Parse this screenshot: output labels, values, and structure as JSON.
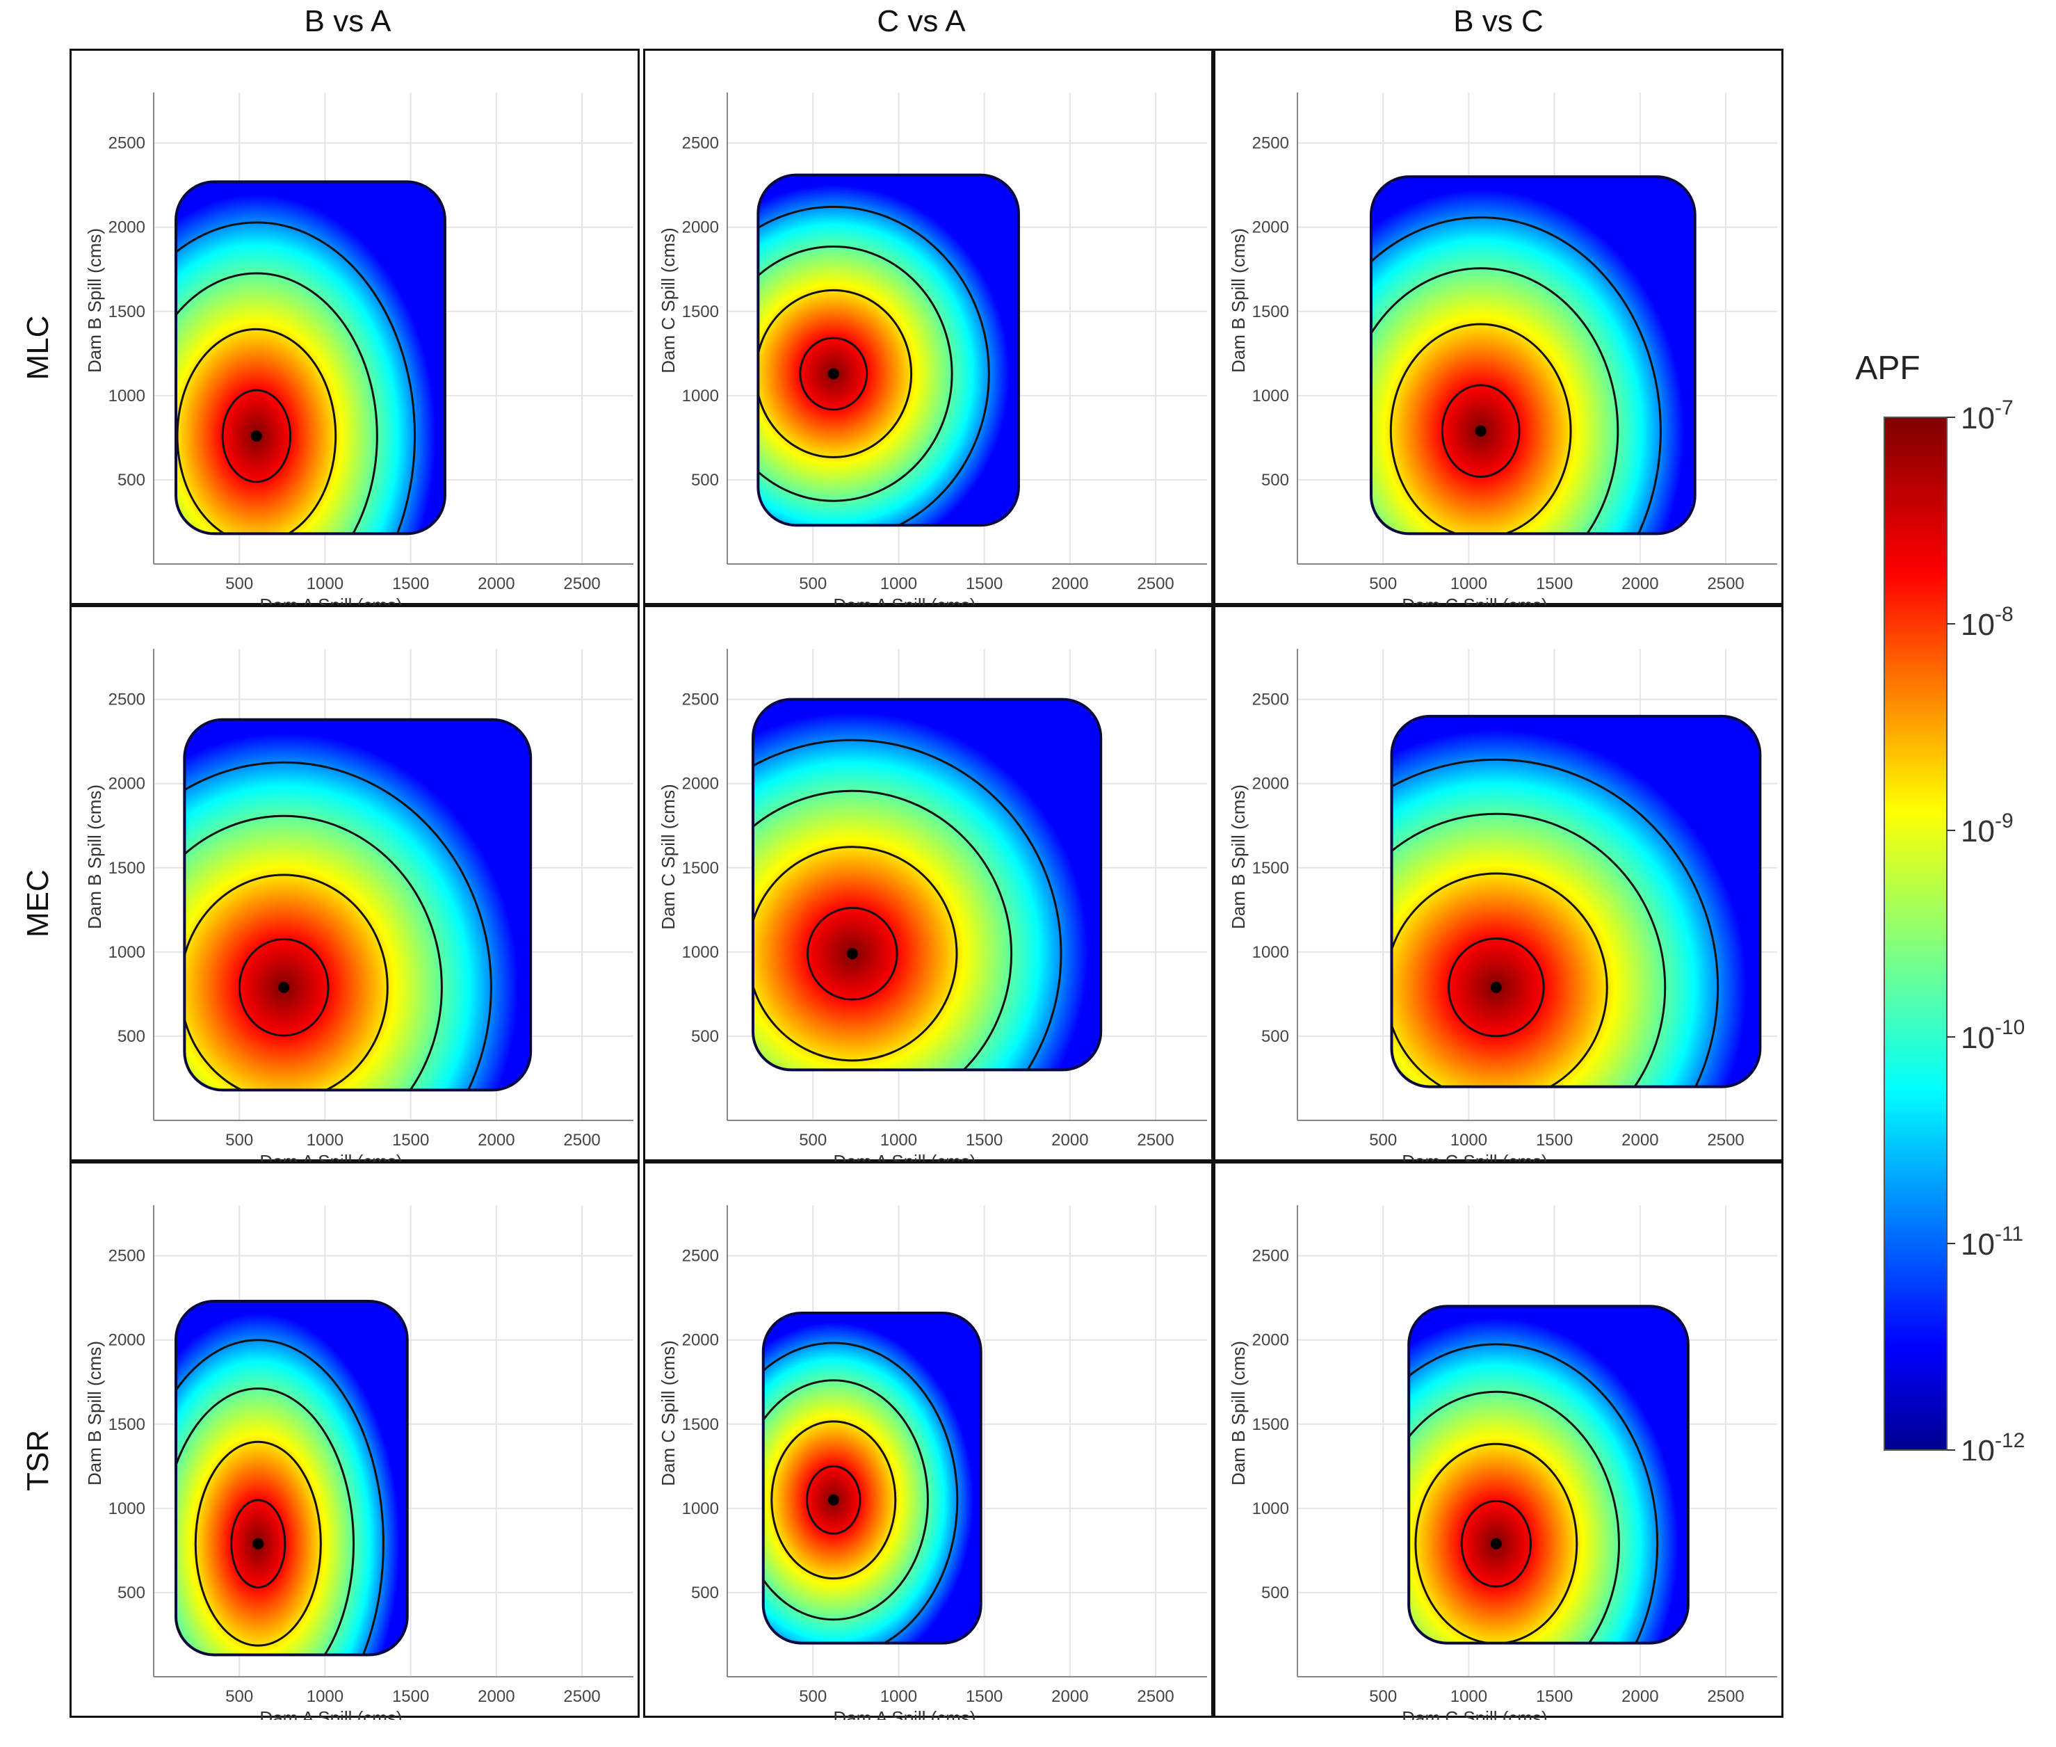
{
  "column_titles": [
    "B vs A",
    "C vs A",
    "B vs C"
  ],
  "row_titles": [
    "MLC",
    "MEC",
    "TSR"
  ],
  "colorbar": {
    "label": "APF",
    "ticks": [
      {
        "base": "10",
        "exp": "-7",
        "value": -7
      },
      {
        "base": "10",
        "exp": "-8",
        "value": -8
      },
      {
        "base": "10",
        "exp": "-9",
        "value": -9
      },
      {
        "base": "10",
        "exp": "-10",
        "value": -10
      },
      {
        "base": "10",
        "exp": "-11",
        "value": -11
      },
      {
        "base": "10",
        "exp": "-12",
        "value": -12
      }
    ],
    "range": [
      -12,
      -7
    ],
    "colors": [
      "#00008f",
      "#0000ff",
      "#00ffff",
      "#ffff00",
      "#ff0000",
      "#800000"
    ]
  },
  "chart_data": [
    {
      "type": "heatmap",
      "row": "MLC",
      "column": "B vs A",
      "xlabel": "Dam A Spill (cms)",
      "ylabel": "Dam B Spill (cms)",
      "xlim": [
        0,
        2800
      ],
      "ylim": [
        0,
        2800
      ],
      "xticks": [
        500,
        1000,
        1500,
        2000,
        2500
      ],
      "yticks": [
        500,
        1000,
        1500,
        2000,
        2500
      ],
      "peak": [
        600,
        760
      ],
      "extent_x": [
        130,
        1700
      ],
      "extent_y": [
        180,
        2270
      ],
      "spread": [
        380,
        620
      ]
    },
    {
      "type": "heatmap",
      "row": "MLC",
      "column": "C vs A",
      "xlabel": "Dam A Spill (cms)",
      "ylabel": "Dam C Spill (cms)",
      "xlim": [
        0,
        2800
      ],
      "ylim": [
        0,
        2800
      ],
      "xticks": [
        500,
        1000,
        1500,
        2000,
        2500
      ],
      "yticks": [
        500,
        1000,
        1500,
        2000,
        2500
      ],
      "peak": [
        620,
        1130
      ],
      "extent_x": [
        180,
        1700
      ],
      "extent_y": [
        230,
        2310
      ],
      "spread": [
        320,
        800
      ]
    },
    {
      "type": "heatmap",
      "row": "MLC",
      "column": "B vs C",
      "xlabel": "Dam C Spill (cms)",
      "ylabel": "Dam B Spill (cms)",
      "xlim": [
        0,
        2800
      ],
      "ylim": [
        0,
        2800
      ],
      "xticks": [
        500,
        1000,
        1500,
        2000,
        2500
      ],
      "yticks": [
        500,
        1000,
        1500,
        2000,
        2500
      ],
      "peak": [
        1070,
        790
      ],
      "extent_x": [
        430,
        2320
      ],
      "extent_y": [
        180,
        2300
      ],
      "spread": [
        620,
        620
      ]
    },
    {
      "type": "heatmap",
      "row": "MEC",
      "column": "B vs A",
      "xlabel": "Dam A Spill (cms)",
      "ylabel": "Dam B Spill (cms)",
      "xlim": [
        0,
        2800
      ],
      "ylim": [
        0,
        2800
      ],
      "xticks": [
        500,
        1000,
        1500,
        2000,
        2500
      ],
      "yticks": [
        500,
        1000,
        1500,
        2000,
        2500
      ],
      "peak": [
        760,
        790
      ],
      "extent_x": [
        180,
        2200
      ],
      "extent_y": [
        180,
        2380
      ],
      "spread": [
        540,
        540
      ]
    },
    {
      "type": "heatmap",
      "row": "MEC",
      "column": "C vs A",
      "xlabel": "Dam A Spill (cms)",
      "ylabel": "Dam C Spill (cms)",
      "xlim": [
        0,
        2800
      ],
      "ylim": [
        0,
        2800
      ],
      "xticks": [
        500,
        1000,
        1500,
        2000,
        2500
      ],
      "yticks": [
        500,
        1000,
        1500,
        2000,
        2500
      ],
      "peak": [
        730,
        990
      ],
      "extent_x": [
        150,
        2180
      ],
      "extent_y": [
        300,
        2500
      ],
      "spread": [
        520,
        700
      ]
    },
    {
      "type": "heatmap",
      "row": "MEC",
      "column": "B vs C",
      "xlabel": "Dam C Spill (cms)",
      "ylabel": "Dam B Spill (cms)",
      "xlim": [
        0,
        2800
      ],
      "ylim": [
        0,
        2800
      ],
      "xticks": [
        500,
        1000,
        1500,
        2000,
        2500
      ],
      "yticks": [
        500,
        1000,
        1500,
        2000,
        2500
      ],
      "peak": [
        1160,
        790
      ],
      "extent_x": [
        550,
        2700
      ],
      "extent_y": [
        200,
        2400
      ],
      "spread": [
        760,
        540
      ]
    },
    {
      "type": "heatmap",
      "row": "TSR",
      "column": "B vs A",
      "xlabel": "Dam A Spill (cms)",
      "ylabel": "Dam B Spill (cms)",
      "xlim": [
        0,
        2800
      ],
      "ylim": [
        0,
        2800
      ],
      "xticks": [
        500,
        1000,
        1500,
        2000,
        2500
      ],
      "yticks": [
        500,
        1000,
        1500,
        2000,
        2500
      ],
      "peak": [
        610,
        790
      ],
      "extent_x": [
        130,
        1480
      ],
      "extent_y": [
        130,
        2230
      ],
      "spread": [
        360,
        560
      ]
    },
    {
      "type": "heatmap",
      "row": "TSR",
      "column": "C vs A",
      "xlabel": "Dam A Spill (cms)",
      "ylabel": "Dam C Spill (cms)",
      "xlim": [
        0,
        2800
      ],
      "ylim": [
        0,
        2800
      ],
      "xticks": [
        500,
        1000,
        1500,
        2000,
        2500
      ],
      "yticks": [
        500,
        1000,
        1500,
        2000,
        2500
      ],
      "peak": [
        620,
        1050
      ],
      "extent_x": [
        210,
        1480
      ],
      "extent_y": [
        200,
        2160
      ],
      "spread": [
        330,
        700
      ]
    },
    {
      "type": "heatmap",
      "row": "TSR",
      "column": "B vs C",
      "xlabel": "Dam C Spill (cms)",
      "ylabel": "Dam B Spill (cms)",
      "xlim": [
        0,
        2800
      ],
      "ylim": [
        0,
        2800
      ],
      "xticks": [
        500,
        1000,
        1500,
        2000,
        2500
      ],
      "yticks": [
        500,
        1000,
        1500,
        2000,
        2500
      ],
      "peak": [
        1160,
        790
      ],
      "extent_x": [
        650,
        2280
      ],
      "extent_y": [
        200,
        2200
      ],
      "spread": [
        580,
        640
      ]
    }
  ]
}
